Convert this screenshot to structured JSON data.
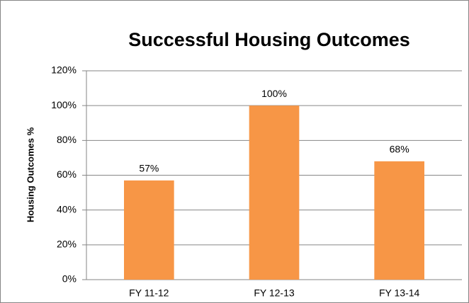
{
  "chart_data": {
    "type": "bar",
    "title": "Successful Housing Outcomes",
    "y_label": "Housing Outcomes %",
    "categories": [
      "FY 11-12",
      "FY 12-13",
      "FY 13-14"
    ],
    "values": [
      57,
      100,
      68
    ],
    "value_labels": [
      "57%",
      "100%",
      "68%"
    ],
    "color": "#f79646",
    "ylim": [
      0,
      120
    ],
    "yticks": [
      {
        "value": 0,
        "label": "0%"
      },
      {
        "value": 20,
        "label": "20%"
      },
      {
        "value": 40,
        "label": "40%"
      },
      {
        "value": 60,
        "label": "60%"
      },
      {
        "value": 80,
        "label": "80%"
      },
      {
        "value": 100,
        "label": "100%"
      },
      {
        "value": 120,
        "label": "120%"
      }
    ],
    "grid": true
  }
}
